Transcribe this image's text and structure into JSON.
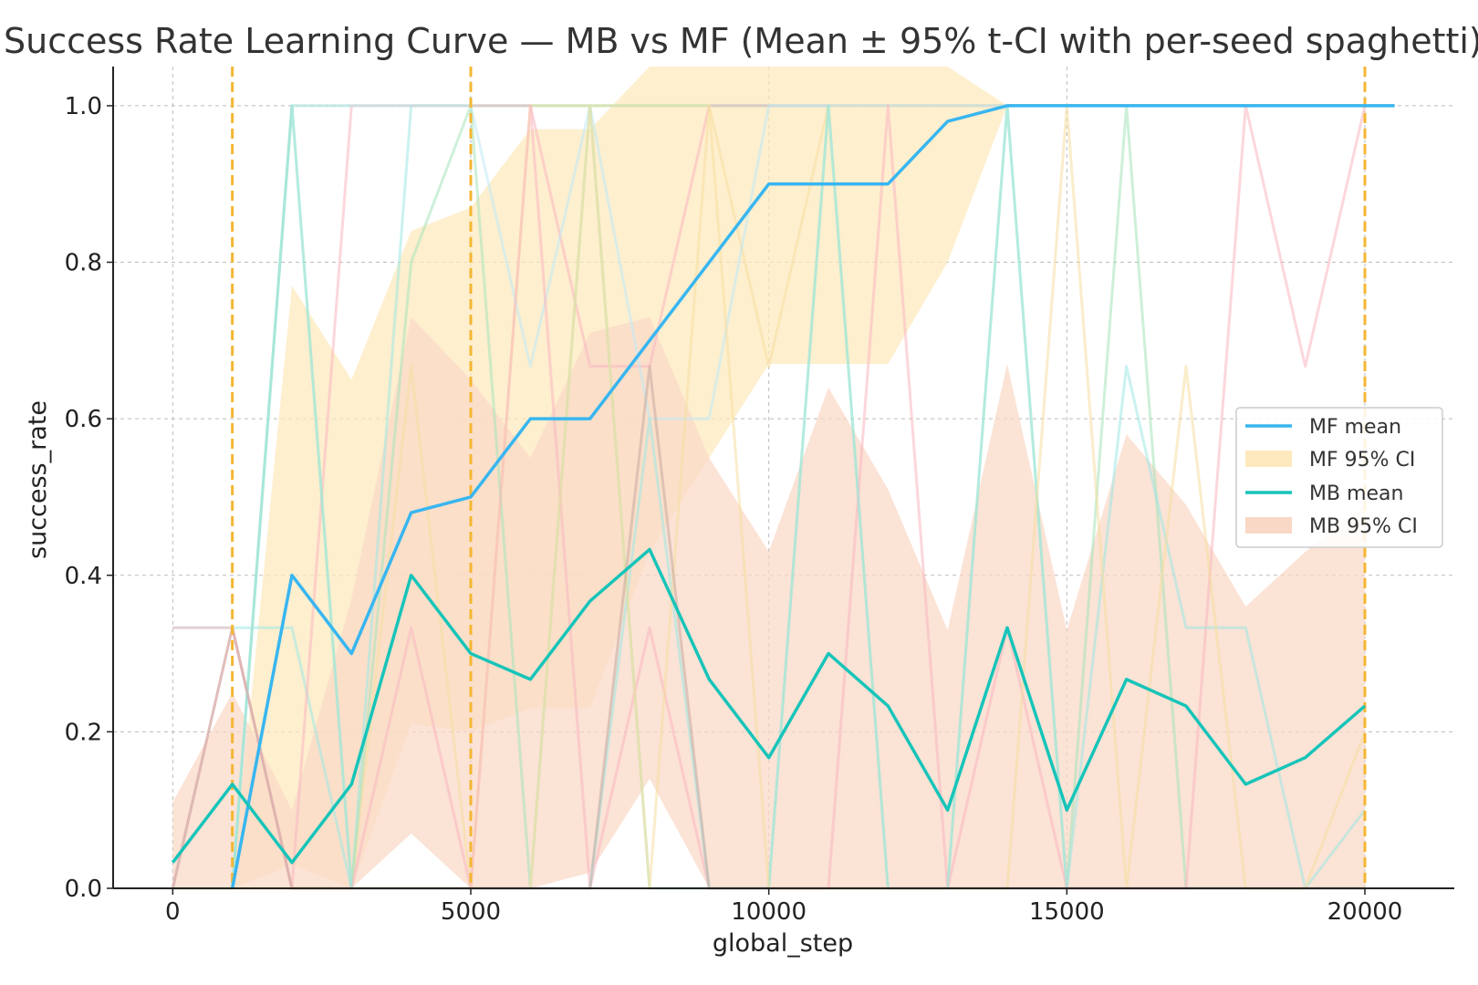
{
  "chart_data": {
    "type": "line",
    "title": "Success Rate Learning Curve — MB vs MF (Mean ± 95% t-CI with per-seed spaghetti)",
    "xlabel": "global_step",
    "ylabel": "success_rate",
    "xlim": [
      -1000,
      21500
    ],
    "ylim": [
      0,
      1.05
    ],
    "xticks": [
      0,
      5000,
      10000,
      15000,
      20000
    ],
    "yticks": [
      0.0,
      0.2,
      0.4,
      0.6,
      0.8,
      1.0
    ],
    "xtick_labels": [
      "0",
      "5000",
      "10000",
      "15000",
      "20000"
    ],
    "ytick_labels": [
      "0.0",
      "0.2",
      "0.4",
      "0.6",
      "0.8",
      "1.0"
    ],
    "grid": true,
    "legend_position": "right",
    "vertical_markers": [
      1000,
      5000,
      20000
    ],
    "colors": {
      "mf_mean": "#38b6f0",
      "mf_ci": "#fde9bd",
      "mb_mean": "#17c4b9",
      "mb_ci": "#f9d8c6",
      "marker": "#f4b633",
      "grid": "#bbbbbb",
      "axis": "#222222"
    },
    "series": [
      {
        "name": "MF mean",
        "x": [
          1000,
          2000,
          3000,
          4000,
          5000,
          6000,
          7000,
          8000,
          9000,
          10000,
          11000,
          12000,
          13000,
          14000,
          15000,
          16000,
          17000,
          18000,
          19000,
          20000,
          20500
        ],
        "values": [
          0.0,
          0.4,
          0.3,
          0.48,
          0.5,
          0.6,
          0.6,
          0.7,
          0.8,
          0.9,
          0.9,
          0.9,
          0.98,
          1.0,
          1.0,
          1.0,
          1.0,
          1.0,
          1.0,
          1.0,
          1.0
        ]
      },
      {
        "name": "MF 95% CI",
        "x": [
          1000,
          2000,
          3000,
          4000,
          5000,
          6000,
          7000,
          8000,
          9000,
          10000,
          11000,
          12000,
          13000,
          14000,
          15000,
          16000,
          17000,
          18000,
          19000,
          20000
        ],
        "lower": [
          0.0,
          0.03,
          0.0,
          0.21,
          0.2,
          0.23,
          0.23,
          0.43,
          0.55,
          0.67,
          0.67,
          0.67,
          0.8,
          1.0,
          1.0,
          1.0,
          1.0,
          1.0,
          1.0,
          1.0
        ],
        "upper": [
          0.0,
          0.77,
          0.65,
          0.84,
          0.87,
          0.97,
          0.97,
          1.05,
          1.05,
          1.05,
          1.05,
          1.05,
          1.05,
          1.0,
          1.0,
          1.0,
          1.0,
          1.0,
          1.0,
          1.0
        ]
      },
      {
        "name": "MB mean",
        "x": [
          0,
          1000,
          2000,
          3000,
          4000,
          5000,
          6000,
          7000,
          8000,
          9000,
          10000,
          11000,
          12000,
          13000,
          14000,
          15000,
          16000,
          17000,
          18000,
          19000,
          20000
        ],
        "values": [
          0.033,
          0.133,
          0.033,
          0.133,
          0.4,
          0.3,
          0.267,
          0.367,
          0.433,
          0.267,
          0.167,
          0.3,
          0.233,
          0.1,
          0.333,
          0.1,
          0.267,
          0.233,
          0.133,
          0.167,
          0.233
        ]
      },
      {
        "name": "MB 95% CI",
        "x": [
          0,
          1000,
          2000,
          3000,
          4000,
          5000,
          6000,
          7000,
          8000,
          9000,
          10000,
          11000,
          12000,
          13000,
          14000,
          15000,
          16000,
          17000,
          18000,
          19000,
          20000
        ],
        "lower": [
          0.0,
          0.0,
          0.0,
          0.0,
          0.07,
          0.0,
          0.0,
          0.02,
          0.14,
          0.0,
          0.0,
          0.0,
          0.0,
          0.0,
          0.0,
          0.0,
          0.0,
          0.0,
          0.0,
          0.0,
          0.0
        ],
        "upper": [
          0.11,
          0.25,
          0.1,
          0.37,
          0.73,
          0.65,
          0.55,
          0.71,
          0.73,
          0.55,
          0.43,
          0.64,
          0.51,
          0.33,
          0.67,
          0.33,
          0.58,
          0.49,
          0.36,
          0.43,
          0.49
        ]
      }
    ],
    "per_seed_lines": {
      "x": [
        0,
        1000,
        2000,
        3000,
        4000,
        5000,
        6000,
        7000,
        8000,
        9000,
        10000,
        11000,
        12000,
        13000,
        14000,
        15000,
        16000,
        17000,
        18000,
        19000,
        20000
      ],
      "mf": [
        {
          "color": "#9fe7e3",
          "values": [
            0.333,
            0.333,
            0.333,
            0.0,
            1.0,
            1.0,
            1.0,
            1.0,
            1.0,
            1.0,
            1.0,
            1.0,
            1.0,
            1.0,
            1.0,
            1.0,
            1.0,
            1.0,
            1.0,
            1.0,
            1.0
          ]
        },
        {
          "color": "#a6e3b9",
          "values": [
            0.0,
            0.0,
            1.0,
            1.0,
            1.0,
            1.0,
            1.0,
            1.0,
            1.0,
            1.0,
            1.0,
            1.0,
            1.0,
            1.0,
            1.0,
            1.0,
            1.0,
            1.0,
            1.0,
            1.0,
            1.0
          ]
        },
        {
          "color": "#f9b6bf",
          "values": [
            0.333,
            0.333,
            0.0,
            1.0,
            1.0,
            1.0,
            1.0,
            0.667,
            0.667,
            1.0,
            1.0,
            1.0,
            1.0,
            1.0,
            1.0,
            1.0,
            1.0,
            1.0,
            1.0,
            1.0,
            1.0
          ]
        },
        {
          "color": "#f6dea1",
          "values": [
            0.0,
            0.0,
            0.0,
            0.0,
            0.667,
            0.0,
            1.0,
            1.0,
            1.0,
            1.0,
            0.667,
            1.0,
            1.0,
            1.0,
            1.0,
            1.0,
            1.0,
            1.0,
            1.0,
            1.0,
            1.0
          ]
        },
        {
          "color": "#bfe9f5",
          "values": [
            0.0,
            0.0,
            1.0,
            1.0,
            1.0,
            1.0,
            0.667,
            1.0,
            0.6,
            0.6,
            1.0,
            1.0,
            1.0,
            1.0,
            1.0,
            1.0,
            1.0,
            1.0,
            1.0,
            1.0,
            1.0
          ]
        }
      ],
      "mb": [
        {
          "color": "#a6e3b9",
          "values": [
            0.0,
            0.0,
            1.0,
            0.0,
            0.8,
            1.0,
            0.0,
            1.0,
            0.0,
            0.0,
            0.0,
            1.0,
            0.0,
            0.0,
            1.0,
            0.0,
            1.0,
            0.0,
            0.0,
            0.0,
            0.0
          ]
        },
        {
          "color": "#f9b6bf",
          "values": [
            0.0,
            0.333,
            0.0,
            0.0,
            0.333,
            0.0,
            1.0,
            0.0,
            0.333,
            0.0,
            0.0,
            0.0,
            1.0,
            0.0,
            0.333,
            0.0,
            0.0,
            0.0,
            1.0,
            0.667,
            1.0
          ]
        },
        {
          "color": "#9fe7e3",
          "values": [
            0.0,
            0.0,
            1.0,
            0.0,
            0.0,
            0.0,
            0.0,
            0.0,
            0.6,
            0.0,
            0.0,
            1.0,
            0.0,
            0.0,
            1.0,
            0.0,
            0.667,
            0.333,
            0.333,
            0.0,
            0.1
          ]
        },
        {
          "color": "#f6dea1",
          "values": [
            0.0,
            0.0,
            0.0,
            0.0,
            0.0,
            0.0,
            0.0,
            1.0,
            0.0,
            1.0,
            0.0,
            0.0,
            0.0,
            0.0,
            0.0,
            1.0,
            0.0,
            0.667,
            0.0,
            0.0,
            0.2
          ]
        },
        {
          "color": "#c9a9a0",
          "values": [
            0.0,
            0.333,
            0.0,
            0.0,
            0.0,
            0.0,
            0.0,
            0.0,
            0.667,
            0.0,
            0.0,
            0.0,
            0.0,
            0.0,
            0.0,
            0.0,
            0.0,
            0.0,
            0.0,
            0.0,
            0.0
          ]
        }
      ]
    }
  }
}
